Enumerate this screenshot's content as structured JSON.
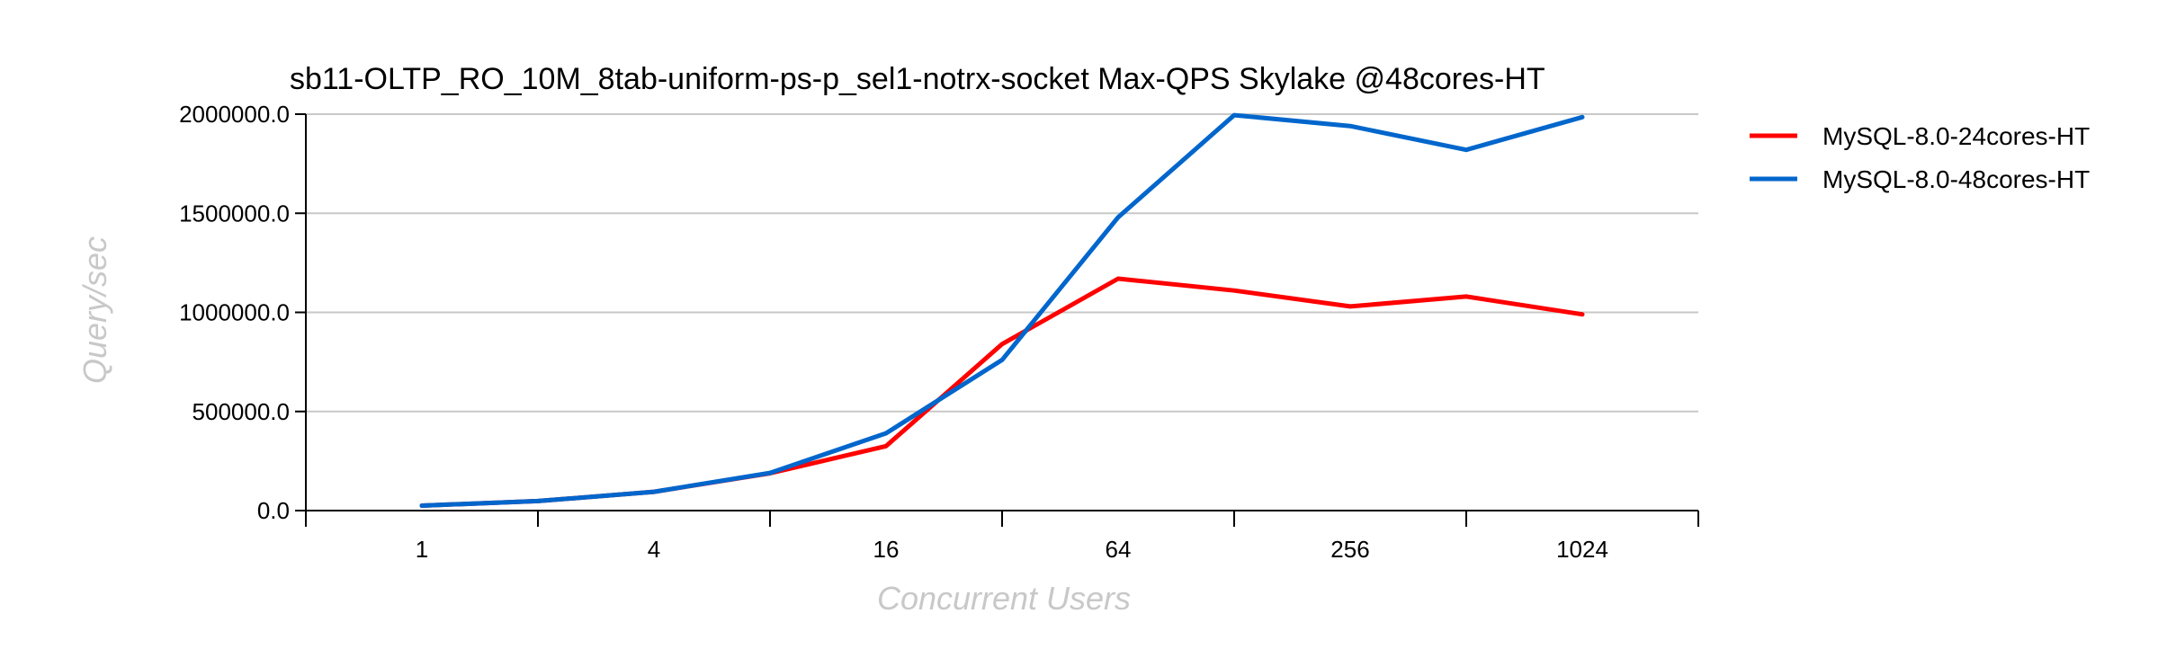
{
  "chart_data": {
    "type": "line",
    "title": "sb11-OLTP_RO_10M_8tab-uniform-ps-p_sel1-notrx-socket Max-QPS Skylake @48cores-HT",
    "xlabel": "Concurrent Users",
    "ylabel": "Query/sec",
    "x": [
      1,
      2,
      4,
      8,
      16,
      32,
      64,
      128,
      256,
      512,
      1024
    ],
    "x_scale": "log2",
    "xlim": [
      0.5,
      2048
    ],
    "x_ticks": [
      1,
      4,
      16,
      64,
      256,
      1024
    ],
    "x_tick_labels": [
      "1",
      "4",
      "16",
      "64",
      "256",
      "1024"
    ],
    "ylim": [
      0,
      2000000
    ],
    "y_ticks": [
      0,
      500000,
      1000000,
      1500000,
      2000000
    ],
    "y_tick_labels": [
      "0.0",
      "500000.0",
      "1000000.0",
      "1500000.0",
      "2000000.0"
    ],
    "grid": "horizontal",
    "legend_position": "right",
    "series": [
      {
        "name": "MySQL-8.0-24cores-HT",
        "color": "#ff0000",
        "values": [
          25000,
          48000,
          95000,
          188000,
          325000,
          840000,
          1170000,
          1110000,
          1030000,
          1080000,
          990000
        ]
      },
      {
        "name": "MySQL-8.0-48cores-HT",
        "color": "#0066cc",
        "values": [
          25000,
          48000,
          95000,
          190000,
          390000,
          760000,
          1480000,
          1995000,
          1940000,
          1820000,
          1985000
        ]
      }
    ]
  }
}
